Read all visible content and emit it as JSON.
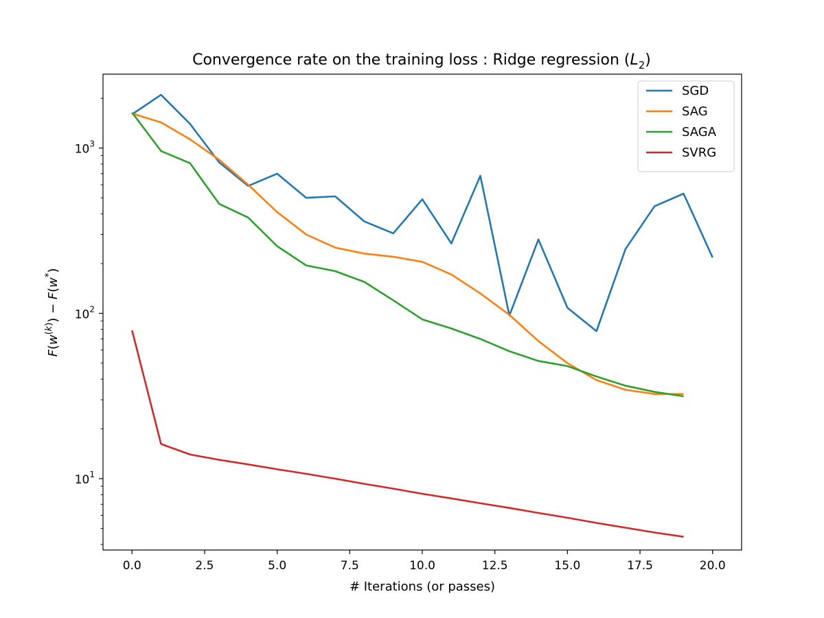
{
  "chart_data": {
    "type": "line",
    "title": "Convergence rate on the training loss : Ridge regression",
    "title_math": "(L2)",
    "xlabel": "# Iterations (or passes)",
    "ylabel": "F(w(k)) − F(w*)",
    "xlim": [
      -1,
      21
    ],
    "ylim": [
      3.7,
      2800
    ],
    "yscale": "log",
    "grid": false,
    "legend_position": "top-right",
    "x_ticks": [
      "0.0",
      "2.5",
      "5.0",
      "7.5",
      "10.0",
      "12.5",
      "15.0",
      "17.5",
      "20.0"
    ],
    "y_ticks": [
      "10^1",
      "10^2",
      "10^3"
    ],
    "series": [
      {
        "name": "SGD",
        "color": "#1f77b4",
        "x": [
          0,
          1,
          2,
          3,
          4,
          5,
          6,
          7,
          8,
          9,
          10,
          11,
          12,
          13,
          14,
          15,
          16,
          17,
          18,
          19,
          20
        ],
        "values": [
          1600,
          2100,
          1400,
          820,
          590,
          700,
          500,
          510,
          360,
          305,
          490,
          265,
          680,
          97,
          280,
          108,
          78,
          245,
          445,
          530,
          218
        ]
      },
      {
        "name": "SAG",
        "color": "#ff7f0e",
        "x": [
          0,
          1,
          2,
          3,
          4,
          5,
          6,
          7,
          8,
          9,
          10,
          11,
          12,
          13,
          14,
          15,
          16,
          17,
          18,
          19
        ],
        "values": [
          1620,
          1430,
          1130,
          850,
          600,
          410,
          300,
          250,
          230,
          220,
          205,
          172,
          132,
          98,
          68,
          50,
          39.5,
          34.5,
          32.5,
          32.5
        ]
      },
      {
        "name": "SAGA",
        "color": "#2ca02c",
        "x": [
          0,
          1,
          2,
          3,
          4,
          5,
          6,
          7,
          8,
          9,
          10,
          11,
          12,
          13,
          14,
          15,
          16,
          17,
          18,
          19
        ],
        "values": [
          1640,
          960,
          810,
          460,
          380,
          255,
          195,
          180,
          155,
          120,
          92,
          81,
          70,
          59,
          51.5,
          48,
          41.5,
          36.5,
          33.5,
          31.5
        ]
      },
      {
        "name": "SVRG",
        "color": "#d62728",
        "x": [
          0,
          1,
          2,
          3,
          4,
          5,
          6,
          7,
          8,
          9,
          10,
          11,
          12,
          13,
          14,
          15,
          16,
          17,
          18,
          19
        ],
        "values": [
          79,
          16.2,
          14,
          13,
          12.2,
          11.4,
          10.7,
          10,
          9.3,
          8.7,
          8.1,
          7.6,
          7.1,
          6.65,
          6.2,
          5.8,
          5.4,
          5.05,
          4.72,
          4.45
        ]
      }
    ]
  }
}
